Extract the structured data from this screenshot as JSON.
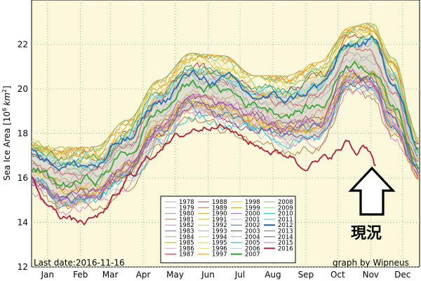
{
  "chart_data": {
    "type": "line",
    "ylabel": "Sea Ice Area [10⁶ km²]",
    "ylabel_pre": "Sea Ice Area [10",
    "ylabel_sup_base": "6",
    "ylabel_unit": "km",
    "ylabel_sup_unit": "2",
    "ylabel_post": "]",
    "ylim": [
      12,
      24
    ],
    "yticks": [
      12,
      14,
      16,
      18,
      20,
      22
    ],
    "xlim": [
      0,
      365
    ],
    "xticks": [
      {
        "label": "Jan",
        "day": 15
      },
      {
        "label": "Feb",
        "day": 46
      },
      {
        "label": "Mar",
        "day": 74
      },
      {
        "label": "Apr",
        "day": 105
      },
      {
        "label": "May",
        "day": 135
      },
      {
        "label": "Jun",
        "day": 166
      },
      {
        "label": "Jul",
        "day": 196
      },
      {
        "label": "Aug",
        "day": 227
      },
      {
        "label": "Sep",
        "day": 258
      },
      {
        "label": "Oct",
        "day": 288
      },
      {
        "label": "Nov",
        "day": 319
      },
      {
        "label": "Dec",
        "day": 349
      }
    ],
    "grid": true,
    "legend": {
      "placement": "bottom-center",
      "ncols": 4,
      "entries": [
        {
          "name": "1978",
          "color": "#aaaaaa"
        },
        {
          "name": "1979",
          "color": "#b3b3b3"
        },
        {
          "name": "1980",
          "color": "#9a9a9a"
        },
        {
          "name": "1981",
          "color": "#a07850"
        },
        {
          "name": "1982",
          "color": "#e377c2"
        },
        {
          "name": "1983",
          "color": "#cc5555"
        },
        {
          "name": "1984",
          "color": "#c0a060"
        },
        {
          "name": "1985",
          "color": "#d4a017"
        },
        {
          "name": "1986",
          "color": "#e0b0d0"
        },
        {
          "name": "1987",
          "color": "#b22222"
        },
        {
          "name": "1988",
          "color": "#8c564b"
        },
        {
          "name": "1989",
          "color": "#b07040"
        },
        {
          "name": "1990",
          "color": "#d4aa20"
        },
        {
          "name": "1991",
          "color": "#bcbd22"
        },
        {
          "name": "1992",
          "color": "#d6c84a"
        },
        {
          "name": "1993",
          "color": "#ff9f2a"
        },
        {
          "name": "1994",
          "color": "#ffbf40"
        },
        {
          "name": "1995",
          "color": "#e8c860"
        },
        {
          "name": "1996",
          "color": "#f0d878"
        },
        {
          "name": "1997",
          "color": "#ff8c1a"
        },
        {
          "name": "1998",
          "color": "#f2c12e"
        },
        {
          "name": "1999",
          "color": "#c8a000"
        },
        {
          "name": "2000",
          "color": "#9467bd"
        },
        {
          "name": "2001",
          "color": "#c5b0d5"
        },
        {
          "name": "2002",
          "color": "#1f77b4"
        },
        {
          "name": "2003",
          "color": "#8b3a8b"
        },
        {
          "name": "2004",
          "color": "#c49c94"
        },
        {
          "name": "2005",
          "color": "#17a2b8"
        },
        {
          "name": "2006",
          "color": "#aec7e8"
        },
        {
          "name": "2007",
          "color": "#2ca02c"
        },
        {
          "name": "2008",
          "color": "#7fbf7f"
        },
        {
          "name": "2009",
          "color": "#98df8a"
        },
        {
          "name": "2010",
          "color": "#17becf"
        },
        {
          "name": "2011",
          "color": "#9edae5"
        },
        {
          "name": "2012",
          "color": "#1f5fa8"
        },
        {
          "name": "2013",
          "color": "#3a9d5d"
        },
        {
          "name": "2014",
          "color": "#7b4173"
        },
        {
          "name": "2015",
          "color": "#ce6dbd"
        },
        {
          "name": "2016",
          "color": "#b0203a"
        }
      ]
    },
    "series": [
      {
        "name": "envelope_max",
        "x": [
          0,
          30,
          60,
          90,
          120,
          150,
          180,
          210,
          240,
          270,
          300,
          320,
          340,
          365
        ],
        "values": [
          17.6,
          17.2,
          17.2,
          18.4,
          20.2,
          21.4,
          21.3,
          20.4,
          20.4,
          21.0,
          22.6,
          22.8,
          21.2,
          17.6
        ]
      },
      {
        "name": "envelope_min",
        "x": [
          0,
          30,
          60,
          90,
          120,
          150,
          180,
          210,
          240,
          270,
          300,
          320,
          340,
          365
        ],
        "values": [
          15.4,
          14.3,
          14.6,
          15.6,
          17.4,
          18.6,
          18.2,
          17.8,
          17.2,
          17.3,
          19.8,
          19.4,
          17.6,
          15.8
        ]
      },
      {
        "name": "clim_mean",
        "x": [
          0,
          30,
          60,
          90,
          120,
          150,
          180,
          210,
          240,
          270,
          300,
          320,
          340,
          365
        ],
        "values": [
          16.6,
          15.8,
          15.9,
          17.2,
          19.1,
          20.3,
          20.0,
          19.3,
          18.9,
          19.4,
          21.3,
          21.0,
          19.3,
          16.6
        ]
      },
      {
        "name": "2016",
        "x": [
          0,
          10,
          20,
          30,
          40,
          50,
          60,
          70,
          80,
          95,
          110,
          125,
          140,
          155,
          165,
          175,
          185,
          195,
          205,
          215,
          225,
          235,
          245,
          252,
          258,
          268,
          278,
          288,
          298,
          305,
          312,
          318,
          324
        ],
        "values": [
          16.0,
          15.0,
          14.6,
          14.3,
          14.1,
          14.0,
          14.2,
          14.6,
          15.2,
          16.2,
          16.9,
          17.5,
          17.9,
          18.2,
          18.3,
          18.5,
          18.2,
          17.9,
          17.6,
          17.4,
          17.2,
          17.1,
          17.0,
          16.6,
          16.6,
          16.7,
          16.9,
          17.2,
          17.6,
          17.1,
          17.5,
          17.3,
          16.6
        ]
      }
    ]
  },
  "footer": {
    "last_date": "Last date:2016-11-16",
    "credit": "graph by Wipneus"
  },
  "annotation": {
    "text": "現況"
  }
}
